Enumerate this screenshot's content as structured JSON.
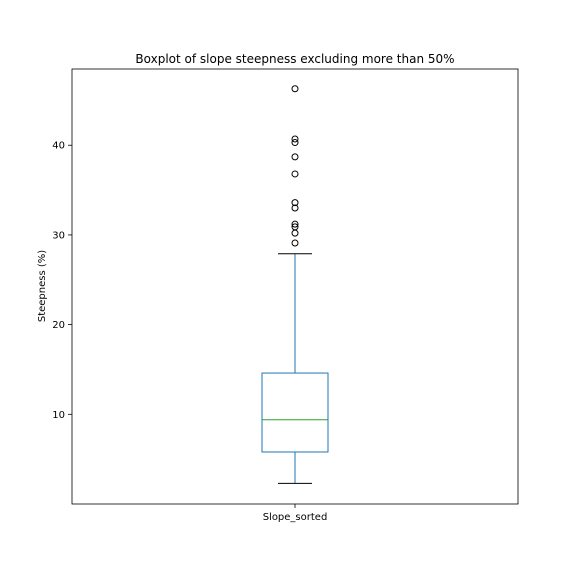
{
  "chart_data": {
    "type": "box",
    "title": "Boxplot of slope steepness excluding more than 50%",
    "xlabel": "",
    "ylabel": "Steepness (%)",
    "categories": [
      "Slope_sorted"
    ],
    "ylim": [
      0,
      48.5
    ],
    "yticks": [
      10,
      20,
      30,
      40
    ],
    "grid": false,
    "box": {
      "whisker_low": 2.3,
      "q1": 5.8,
      "median": 9.4,
      "q3": 14.6,
      "whisker_high": 27.9
    },
    "outliers": [
      29.1,
      30.2,
      30.9,
      31.2,
      33.0,
      33.6,
      36.8,
      38.7,
      40.3,
      40.7,
      46.3
    ],
    "colors": {
      "box": "#1f77b4",
      "median": "#2ca02c",
      "whisker": "#1f77b4",
      "cap": "#000000",
      "outlier": "#000000"
    }
  }
}
